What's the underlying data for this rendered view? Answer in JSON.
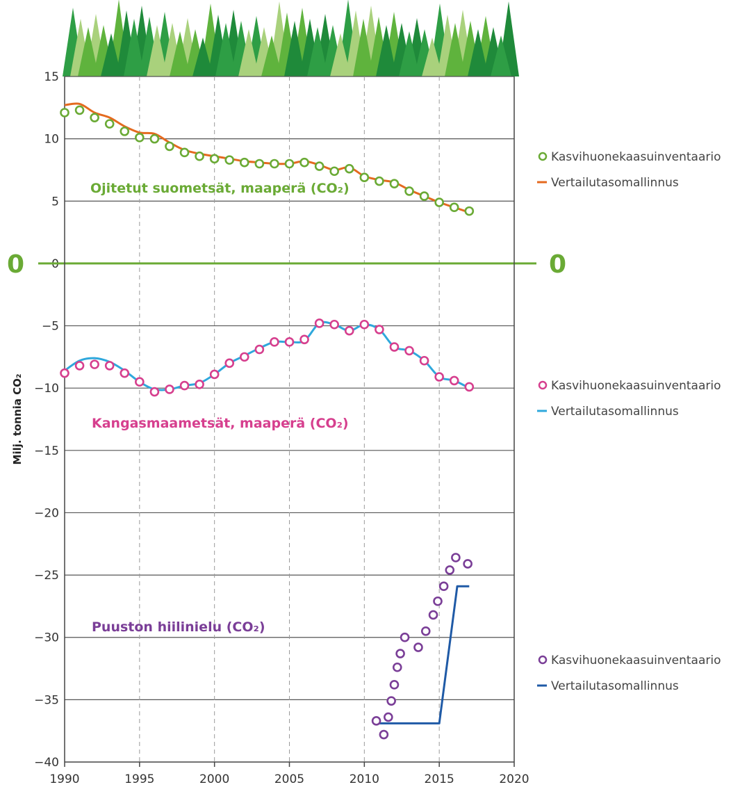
{
  "chart_data": {
    "type": "line",
    "title": "",
    "ylabel": "Milj. tonnia CO₂",
    "xlabel": "",
    "xlim": [
      1990,
      2020
    ],
    "ylim": [
      -40,
      15
    ],
    "x_ticks": [
      1990,
      1995,
      2000,
      2005,
      2010,
      2015,
      2020
    ],
    "y_ticks": [
      15,
      10,
      5,
      0,
      -5,
      -10,
      -15,
      -20,
      -25,
      -30,
      -35,
      -40
    ],
    "zero_label": "0",
    "grid": true,
    "annotations": [
      {
        "text": "Ojitetut suometsät, maaperä (CO₂)",
        "color": "#6aaa35"
      },
      {
        "text": "Kangasmaametsät, maaperä (CO₂)",
        "color": "#d63f8e"
      },
      {
        "text": "Puuston hiilinielu (CO₂)",
        "color": "#7a3e97"
      }
    ],
    "groups": [
      {
        "inventory": {
          "name": "Kasvihuonekaasuinventaario",
          "color": "#6aaa35",
          "x": [
            1990,
            1991,
            1992,
            1993,
            1994,
            1995,
            1996,
            1997,
            1998,
            1999,
            2000,
            2001,
            2002,
            2003,
            2004,
            2005,
            2006,
            2007,
            2008,
            2009,
            2010,
            2011,
            2012,
            2013,
            2014,
            2015,
            2016,
            2017
          ],
          "y": [
            12.1,
            12.3,
            11.7,
            11.2,
            10.6,
            10.1,
            10.0,
            9.4,
            8.9,
            8.6,
            8.4,
            8.3,
            8.1,
            8.0,
            8.0,
            8.0,
            8.1,
            7.8,
            7.4,
            7.6,
            6.9,
            6.6,
            6.4,
            5.8,
            5.4,
            4.9,
            4.5,
            4.2
          ]
        },
        "reference": {
          "name": "Vertailutasomallinnus",
          "color": "#e46a1f",
          "x": [
            1990,
            1991,
            1992,
            1993,
            1994,
            1995,
            1996,
            1997,
            1998,
            1999,
            2000,
            2001,
            2002,
            2003,
            2004,
            2005,
            2006,
            2007,
            2008,
            2009,
            2010,
            2011,
            2012,
            2013,
            2014,
            2015,
            2016,
            2017
          ],
          "y": [
            12.7,
            12.8,
            12.1,
            11.7,
            11.0,
            10.5,
            10.4,
            9.7,
            9.1,
            8.8,
            8.6,
            8.4,
            8.2,
            8.1,
            8.0,
            8.0,
            8.2,
            7.9,
            7.5,
            7.7,
            7.0,
            6.7,
            6.5,
            5.9,
            5.4,
            4.9,
            4.5,
            4.1
          ]
        }
      },
      {
        "inventory": {
          "name": "Kasvihuonekaasuinventaario",
          "color": "#d63f8e",
          "x": [
            1990,
            1991,
            1992,
            1993,
            1994,
            1995,
            1996,
            1997,
            1998,
            1999,
            2000,
            2001,
            2002,
            2003,
            2004,
            2005,
            2006,
            2007,
            2008,
            2009,
            2010,
            2011,
            2012,
            2013,
            2014,
            2015,
            2016,
            2017
          ],
          "y": [
            -8.8,
            -8.2,
            -8.1,
            -8.2,
            -8.8,
            -9.5,
            -10.3,
            -10.1,
            -9.8,
            -9.7,
            -8.9,
            -8.0,
            -7.5,
            -6.9,
            -6.3,
            -6.3,
            -6.1,
            -4.8,
            -4.9,
            -5.4,
            -4.9,
            -5.3,
            -6.7,
            -7.0,
            -7.8,
            -9.1,
            -9.4,
            -9.9
          ]
        },
        "reference": {
          "name": "Vertailutasomallinnus",
          "color": "#2fa8dc",
          "x": [
            1990,
            1991,
            1992,
            1993,
            1994,
            1995,
            1996,
            1997,
            1998,
            1999,
            2000,
            2001,
            2002,
            2003,
            2004,
            2005,
            2006,
            2007,
            2008,
            2009,
            2010,
            2011,
            2012,
            2013,
            2014,
            2015,
            2016,
            2017
          ],
          "y": [
            -8.6,
            -7.8,
            -7.6,
            -7.9,
            -8.6,
            -9.5,
            -10.1,
            -10.1,
            -9.8,
            -9.6,
            -8.9,
            -8.0,
            -7.4,
            -6.8,
            -6.3,
            -6.3,
            -6.2,
            -4.8,
            -4.9,
            -5.4,
            -4.9,
            -5.3,
            -6.7,
            -7.0,
            -7.8,
            -9.1,
            -9.4,
            -10.0
          ]
        }
      },
      {
        "inventory": {
          "name": "Kasvihuonekaasuinventaario",
          "color": "#7a3e97",
          "x": [
            2010.8,
            2011.3,
            2011.6,
            2011.8,
            2012.0,
            2012.2,
            2012.4,
            2012.7,
            2013.6,
            2014.1,
            2014.6,
            2014.9,
            2015.3,
            2015.7,
            2016.1,
            2016.9
          ],
          "y": [
            -36.7,
            -37.8,
            -36.4,
            -35.1,
            -33.8,
            -32.4,
            -31.3,
            -30.0,
            -30.8,
            -29.5,
            -28.2,
            -27.1,
            -25.9,
            -24.6,
            -23.6,
            -24.1
          ]
        },
        "reference": {
          "name": "Vertailutasomallinnus",
          "color": "#1f5aa6",
          "x": [
            2010.8,
            2015.0,
            2016.2,
            2017.0
          ],
          "y": [
            -36.9,
            -36.9,
            -25.9,
            -25.9
          ]
        }
      }
    ]
  }
}
